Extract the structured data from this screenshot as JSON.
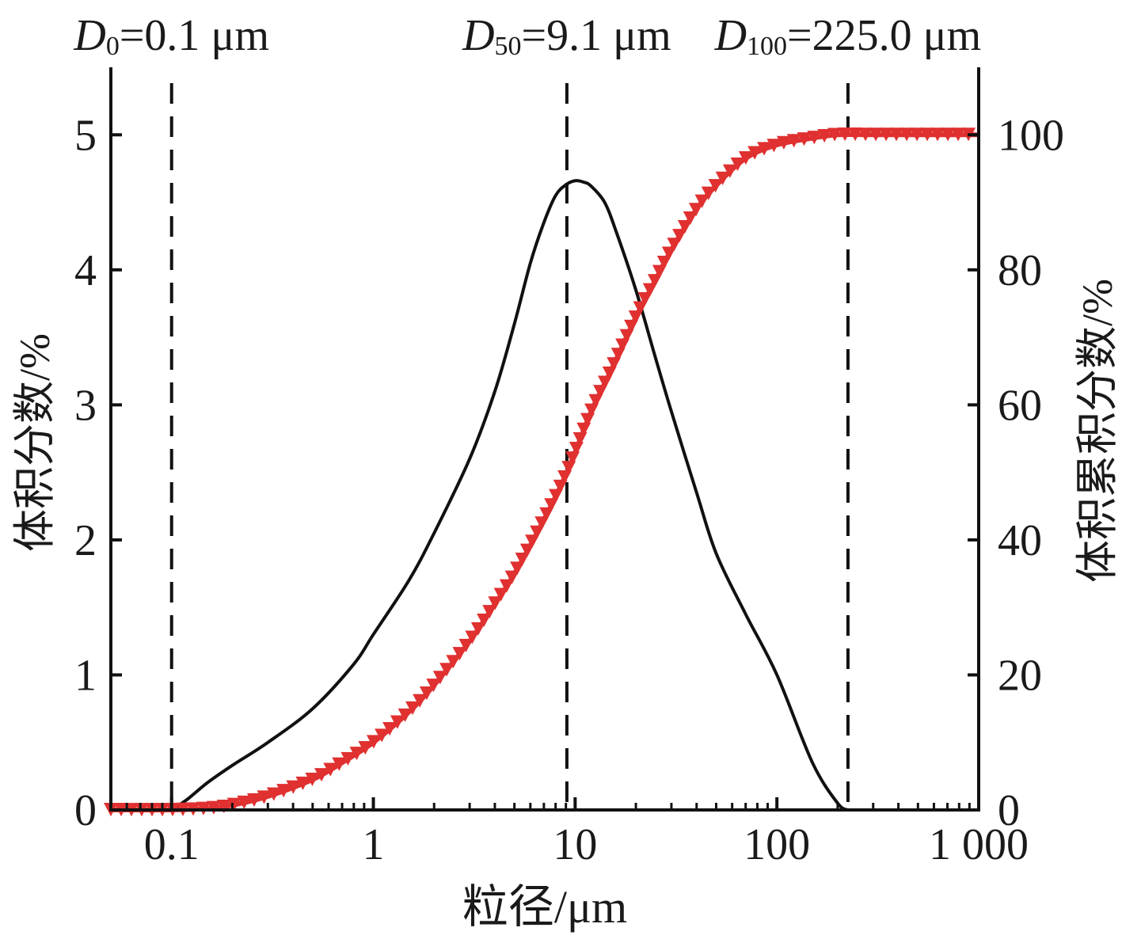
{
  "chart_data": {
    "type": "line",
    "x_scale": "log",
    "xlim": [
      0.05,
      1000
    ],
    "xlabel": "粒径/μm",
    "x_ticks": [
      {
        "value": 0.1,
        "label": "0.1"
      },
      {
        "value": 1,
        "label": "1"
      },
      {
        "value": 10,
        "label": "10"
      },
      {
        "value": 100,
        "label": "100"
      },
      {
        "value": 1000,
        "label": "1 000"
      }
    ],
    "y_left": {
      "label": "体积分数/%",
      "lim": [
        0,
        5.5
      ],
      "ticks": [
        0,
        1,
        2,
        3,
        4,
        5
      ]
    },
    "y_right": {
      "label": "体积累积分数/%",
      "lim": [
        0,
        110
      ],
      "ticks": [
        0,
        20,
        40,
        60,
        80,
        100
      ]
    },
    "markers": [
      {
        "sym": "D",
        "sub": "0",
        "val": "=0.1 μm",
        "x": 0.1
      },
      {
        "sym": "D",
        "sub": "50",
        "val": "=9.1 μm",
        "x": 9.1
      },
      {
        "sym": "D",
        "sub": "100",
        "val": "=225.0 μm",
        "x": 225
      }
    ],
    "series": [
      {
        "axis": "left",
        "color": "#111111",
        "x": [
          0.1,
          0.12,
          0.15,
          0.2,
          0.3,
          0.5,
          0.8,
          1,
          1.5,
          2,
          3,
          4,
          5,
          6,
          7,
          8,
          9,
          10,
          11,
          12,
          14,
          16,
          20,
          25,
          30,
          40,
          50,
          70,
          100,
          150,
          200,
          225
        ],
        "values": [
          0,
          0.08,
          0.2,
          0.33,
          0.5,
          0.75,
          1.08,
          1.3,
          1.7,
          2.05,
          2.6,
          3.1,
          3.6,
          4.05,
          4.35,
          4.55,
          4.63,
          4.66,
          4.65,
          4.62,
          4.5,
          4.28,
          3.85,
          3.35,
          2.95,
          2.35,
          1.9,
          1.45,
          1.0,
          0.35,
          0.05,
          0
        ]
      },
      {
        "axis": "right",
        "color": "#e03030",
        "marker": "triangle-down",
        "x": [
          0.05,
          0.1,
          0.15,
          0.2,
          0.3,
          0.5,
          0.7,
          1,
          1.5,
          2,
          3,
          4,
          5,
          7,
          9.1,
          12,
          15,
          20,
          25,
          30,
          40,
          50,
          70,
          100,
          150,
          200,
          300,
          500,
          1000
        ],
        "values": [
          0,
          0,
          0.2,
          0.7,
          2.0,
          4.5,
          7.0,
          10.0,
          14.5,
          18.5,
          25.0,
          30.5,
          35.0,
          43.0,
          50.0,
          59.0,
          65.0,
          73.0,
          78.5,
          83.0,
          89.0,
          92.5,
          96.5,
          98.5,
          99.5,
          100,
          100,
          100,
          100
        ]
      }
    ]
  }
}
